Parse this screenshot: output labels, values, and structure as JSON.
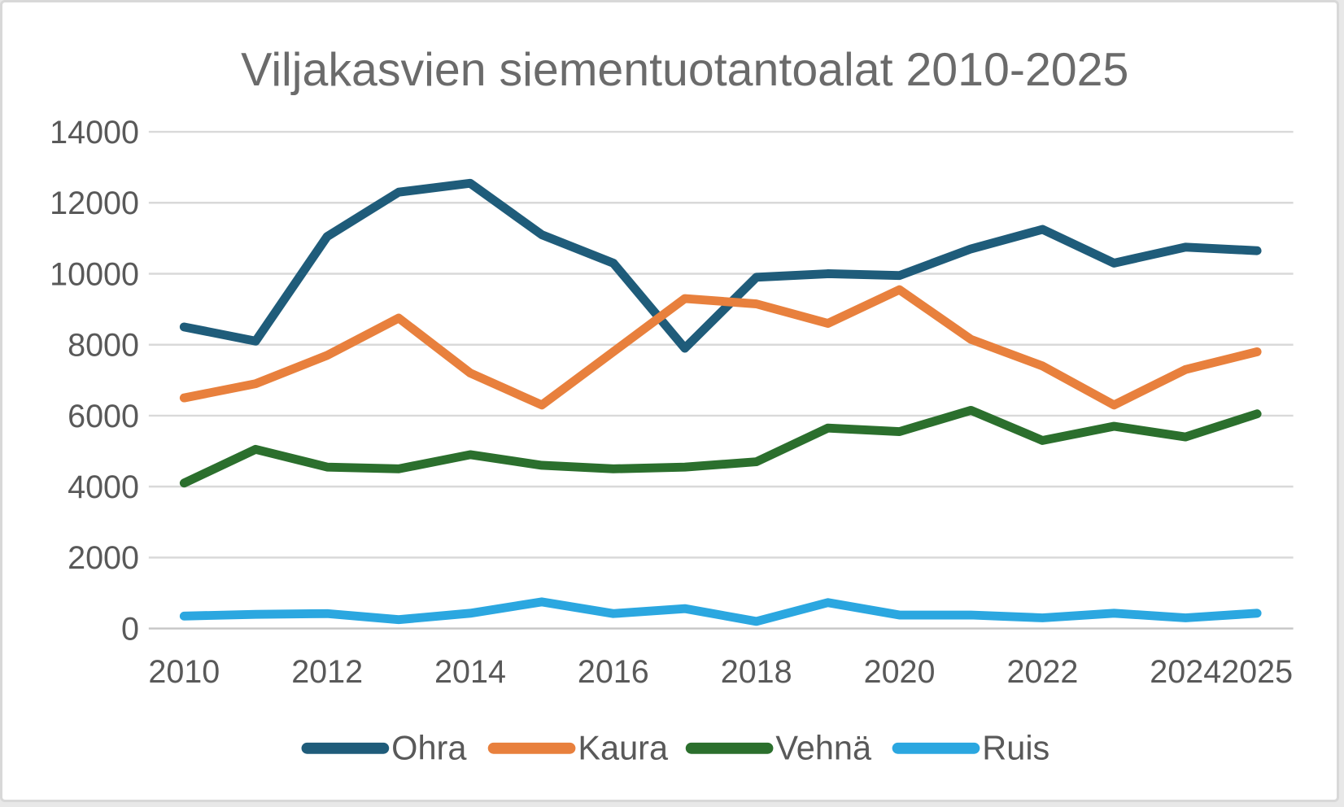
{
  "chart_data": {
    "type": "line",
    "title": "Viljakasvien siementuotantoalat 2010-2025",
    "x": [
      2010,
      2011,
      2012,
      2013,
      2014,
      2015,
      2016,
      2017,
      2018,
      2019,
      2020,
      2021,
      2022,
      2023,
      2024,
      2025
    ],
    "x_tick_labels": [
      "2010",
      "2012",
      "2014",
      "2016",
      "2018",
      "2020",
      "2022",
      "2024",
      "2025"
    ],
    "x_tick_years": [
      2010,
      2012,
      2014,
      2016,
      2018,
      2020,
      2022,
      2024,
      2025
    ],
    "y_ticks": [
      0,
      2000,
      4000,
      6000,
      8000,
      10000,
      12000,
      14000
    ],
    "ylim": [
      0,
      14000
    ],
    "grid": true,
    "legend_position": "bottom",
    "series": [
      {
        "name": "Ohra",
        "color": "#1f5c7a",
        "values": [
          8500,
          8100,
          11050,
          12300,
          12550,
          11100,
          10300,
          7900,
          9900,
          10000,
          9950,
          10700,
          11250,
          10300,
          10750,
          10650
        ]
      },
      {
        "name": "Kaura",
        "color": "#e8803d",
        "values": [
          6500,
          6900,
          7700,
          8750,
          7200,
          6300,
          7800,
          9300,
          9150,
          8600,
          9550,
          8150,
          7400,
          6300,
          7300,
          7800
        ]
      },
      {
        "name": "Vehnä",
        "color": "#2b6f2d",
        "values": [
          4100,
          5050,
          4550,
          4500,
          4900,
          4600,
          4500,
          4550,
          4700,
          5650,
          5550,
          6150,
          5300,
          5700,
          5400,
          6050
        ]
      },
      {
        "name": "Ruis",
        "color": "#2ba7e0",
        "values": [
          350,
          400,
          420,
          250,
          430,
          750,
          420,
          560,
          200,
          730,
          380,
          380,
          300,
          430,
          300,
          430
        ]
      }
    ],
    "styles": {
      "title_color": "#6b6b6b",
      "axis_label_color": "#595959",
      "gridline_color": "#d9d9d9",
      "axis_line_color": "#c6c6c6",
      "background": "#ffffff"
    },
    "legend_items": [
      {
        "label": "Ohra",
        "x": 375
      },
      {
        "label": "Kaura",
        "x": 607
      },
      {
        "label": "Vehnä",
        "x": 853
      },
      {
        "label": "Ruis",
        "x": 1110
      }
    ]
  }
}
